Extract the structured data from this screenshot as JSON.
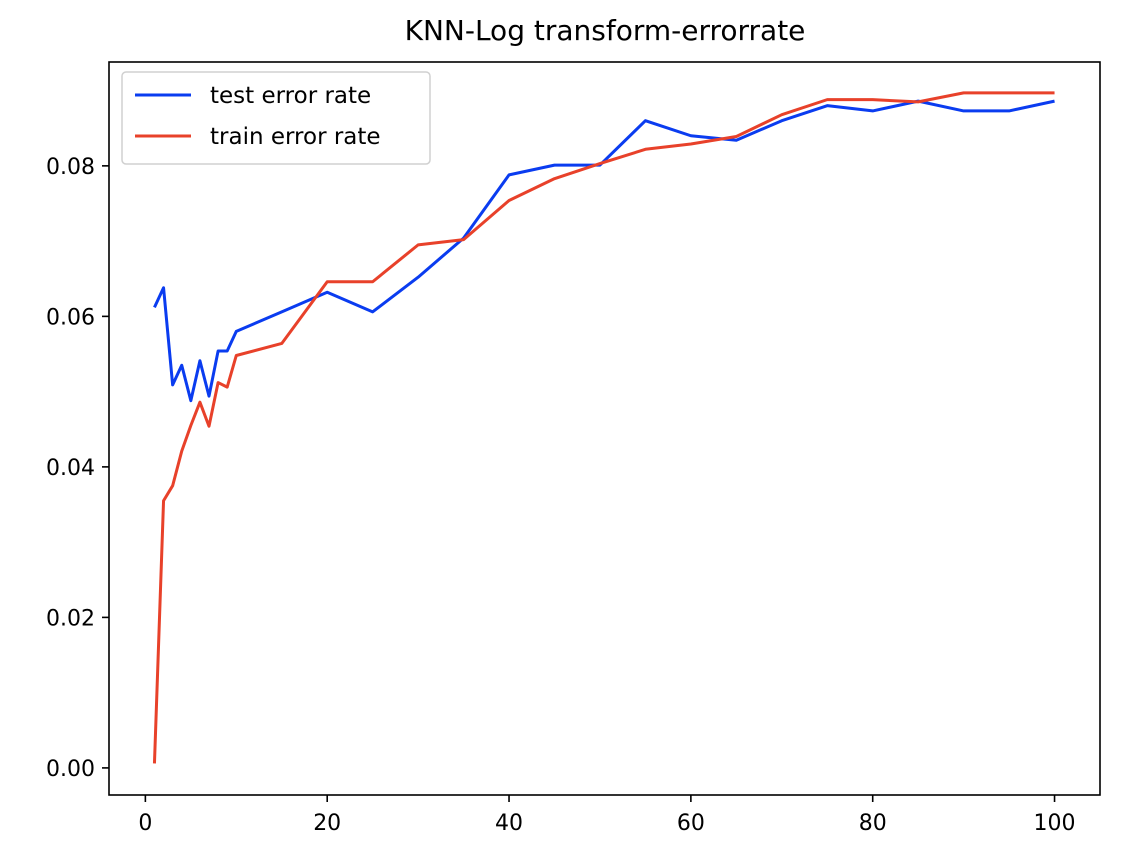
{
  "chart_data": {
    "type": "line",
    "title": "KNN-Log transform-errorrate",
    "xlabel": "",
    "ylabel": "",
    "xlim": [
      -4,
      105
    ],
    "ylim": [
      -0.0036,
      0.0938
    ],
    "x_ticks": [
      0,
      20,
      40,
      60,
      80,
      100
    ],
    "x_tick_labels": [
      "0",
      "20",
      "40",
      "60",
      "80",
      "100"
    ],
    "y_ticks": [
      0.0,
      0.02,
      0.04,
      0.06,
      0.08
    ],
    "y_tick_labels": [
      "0.00",
      "0.02",
      "0.04",
      "0.06",
      "0.08"
    ],
    "grid": false,
    "legend_position": "upper-left",
    "x": [
      1,
      2,
      3,
      4,
      5,
      6,
      7,
      8,
      9,
      10,
      15,
      20,
      25,
      30,
      35,
      40,
      45,
      50,
      55,
      60,
      65,
      70,
      75,
      80,
      85,
      90,
      95,
      100
    ],
    "series": [
      {
        "name": "test error rate",
        "color": "#0a3cf0",
        "values": [
          0.0612,
          0.0638,
          0.0509,
          0.0535,
          0.0488,
          0.0541,
          0.0494,
          0.0554,
          0.0554,
          0.058,
          0.0606,
          0.0632,
          0.0606,
          0.0652,
          0.0704,
          0.0788,
          0.0801,
          0.0801,
          0.086,
          0.084,
          0.0834,
          0.086,
          0.088,
          0.0873,
          0.0886,
          0.0873,
          0.0873,
          0.0886
        ]
      },
      {
        "name": "train error rate",
        "color": "#e8412a",
        "values": [
          0.0006,
          0.0355,
          0.0375,
          0.0421,
          0.0455,
          0.0486,
          0.0454,
          0.0512,
          0.0506,
          0.0548,
          0.0564,
          0.0646,
          0.0646,
          0.0695,
          0.0702,
          0.0754,
          0.0783,
          0.0803,
          0.0822,
          0.0829,
          0.0839,
          0.0868,
          0.0888,
          0.0888,
          0.0885,
          0.0897,
          0.0897,
          0.0897
        ]
      }
    ]
  }
}
